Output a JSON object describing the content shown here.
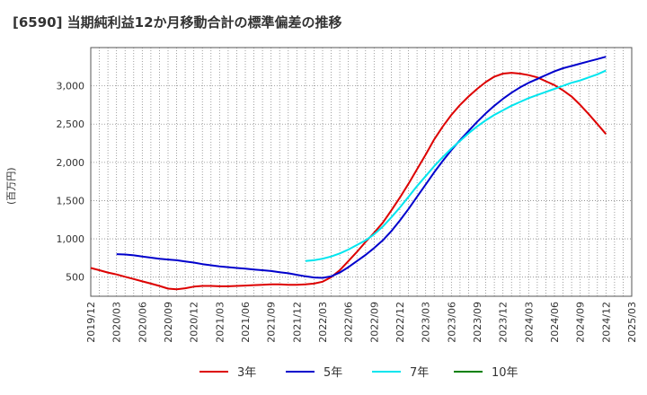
{
  "chart_data": {
    "type": "line",
    "title": "[6590]  当期純利益12か月移動合計の標準偏差の推移",
    "ylabel": "(百万円)",
    "xlabel": "",
    "x_ticks": [
      "2019/12",
      "2020/03",
      "2020/06",
      "2020/09",
      "2020/12",
      "2021/03",
      "2021/06",
      "2021/09",
      "2021/12",
      "2022/03",
      "2022/06",
      "2022/09",
      "2022/12",
      "2023/03",
      "2023/06",
      "2023/09",
      "2023/12",
      "2024/03",
      "2024/06",
      "2024/09",
      "2024/12",
      "2025/03"
    ],
    "y_ticks": [
      500,
      1000,
      1500,
      2000,
      2500,
      3000
    ],
    "y_tick_labels": [
      "500",
      "1,000",
      "1,500",
      "2,000",
      "2,500",
      "3,000"
    ],
    "ylim": [
      250,
      3500
    ],
    "grid": true,
    "legend_position": "bottom",
    "series": [
      {
        "name": "3年",
        "color": "#dd0000",
        "x": [
          "2019/12",
          "2020/01",
          "2020/02",
          "2020/03",
          "2020/04",
          "2020/05",
          "2020/06",
          "2020/07",
          "2020/08",
          "2020/09",
          "2020/10",
          "2020/11",
          "2020/12",
          "2021/01",
          "2021/02",
          "2021/03",
          "2021/04",
          "2021/05",
          "2021/06",
          "2021/07",
          "2021/08",
          "2021/09",
          "2021/10",
          "2021/11",
          "2021/12",
          "2022/01",
          "2022/02",
          "2022/03",
          "2022/04",
          "2022/05",
          "2022/06",
          "2022/07",
          "2022/08",
          "2022/09",
          "2022/10",
          "2022/11",
          "2022/12",
          "2023/01",
          "2023/02",
          "2023/03",
          "2023/04",
          "2023/05",
          "2023/06",
          "2023/07",
          "2023/08",
          "2023/09",
          "2023/10",
          "2023/11",
          "2023/12",
          "2024/01",
          "2024/02",
          "2024/03",
          "2024/04",
          "2024/05",
          "2024/06",
          "2024/07",
          "2024/08",
          "2024/09",
          "2024/10",
          "2024/11",
          "2024/12"
        ],
        "values": [
          620,
          590,
          560,
          535,
          505,
          475,
          445,
          415,
          385,
          350,
          340,
          355,
          375,
          385,
          385,
          380,
          380,
          385,
          390,
          395,
          400,
          405,
          405,
          400,
          400,
          405,
          415,
          440,
          500,
          590,
          710,
          830,
          960,
          1080,
          1210,
          1370,
          1540,
          1720,
          1910,
          2100,
          2300,
          2470,
          2620,
          2750,
          2860,
          2960,
          3050,
          3120,
          3160,
          3170,
          3160,
          3140,
          3110,
          3060,
          3010,
          2940,
          2860,
          2750,
          2630,
          2500,
          2370
        ]
      },
      {
        "name": "5年",
        "color": "#0000cc",
        "x": [
          "2020/03",
          "2020/04",
          "2020/05",
          "2020/06",
          "2020/07",
          "2020/08",
          "2020/09",
          "2020/10",
          "2020/11",
          "2020/12",
          "2021/01",
          "2021/02",
          "2021/03",
          "2021/04",
          "2021/05",
          "2021/06",
          "2021/07",
          "2021/08",
          "2021/09",
          "2021/10",
          "2021/11",
          "2021/12",
          "2022/01",
          "2022/02",
          "2022/03",
          "2022/04",
          "2022/05",
          "2022/06",
          "2022/07",
          "2022/08",
          "2022/09",
          "2022/10",
          "2022/11",
          "2022/12",
          "2023/01",
          "2023/02",
          "2023/03",
          "2023/04",
          "2023/05",
          "2023/06",
          "2023/07",
          "2023/08",
          "2023/09",
          "2023/10",
          "2023/11",
          "2023/12",
          "2024/01",
          "2024/02",
          "2024/03",
          "2024/04",
          "2024/05",
          "2024/06",
          "2024/07",
          "2024/08",
          "2024/09",
          "2024/10",
          "2024/11",
          "2024/12"
        ],
        "values": [
          800,
          795,
          785,
          770,
          755,
          740,
          730,
          720,
          705,
          690,
          670,
          655,
          640,
          630,
          620,
          610,
          600,
          590,
          580,
          565,
          550,
          530,
          510,
          495,
          490,
          510,
          560,
          630,
          710,
          790,
          880,
          980,
          1100,
          1240,
          1390,
          1550,
          1710,
          1870,
          2020,
          2160,
          2290,
          2410,
          2530,
          2640,
          2740,
          2830,
          2910,
          2980,
          3040,
          3090,
          3140,
          3190,
          3230,
          3260,
          3290,
          3320,
          3350,
          3380
        ]
      },
      {
        "name": "7年",
        "color": "#00e5ee",
        "x": [
          "2022/01",
          "2022/02",
          "2022/03",
          "2022/04",
          "2022/05",
          "2022/06",
          "2022/07",
          "2022/08",
          "2022/09",
          "2022/10",
          "2022/11",
          "2022/12",
          "2023/01",
          "2023/02",
          "2023/03",
          "2023/04",
          "2023/05",
          "2023/06",
          "2023/07",
          "2023/08",
          "2023/09",
          "2023/10",
          "2023/11",
          "2023/12",
          "2024/01",
          "2024/02",
          "2024/03",
          "2024/04",
          "2024/05",
          "2024/06",
          "2024/07",
          "2024/08",
          "2024/09",
          "2024/10",
          "2024/11",
          "2024/12"
        ],
        "values": [
          710,
          720,
          740,
          770,
          810,
          860,
          920,
          980,
          1060,
          1160,
          1280,
          1410,
          1550,
          1690,
          1820,
          1950,
          2070,
          2180,
          2280,
          2380,
          2470,
          2550,
          2620,
          2680,
          2740,
          2790,
          2840,
          2880,
          2920,
          2960,
          3000,
          3040,
          3070,
          3110,
          3150,
          3200
        ]
      },
      {
        "name": "10年",
        "color": "#008000",
        "x": [],
        "values": []
      }
    ]
  }
}
